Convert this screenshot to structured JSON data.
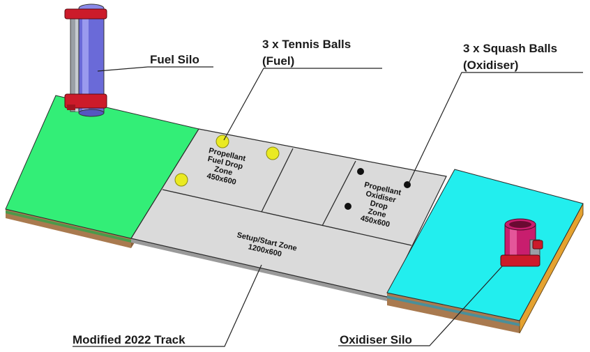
{
  "labels": {
    "fuel_silo": "Fuel Silo",
    "tennis_balls_line1": "3 x Tennis Balls",
    "tennis_balls_line2": "(Fuel)",
    "squash_balls_line1": "3 x Squash Balls",
    "squash_balls_line2": "(Oxidiser)",
    "modified_track": "Modified 2022 Track",
    "oxidiser_silo": "Oxidiser Silo"
  },
  "zones": {
    "fuel_drop": [
      "Propellant",
      "Fuel Drop",
      "Zone",
      "450x600"
    ],
    "oxidiser_drop": [
      "Propellant",
      "Oxidiser",
      "Drop",
      "Zone",
      "450x600"
    ],
    "start": [
      "Setup/Start Zone",
      "1200x600"
    ]
  },
  "colors": {
    "fuel_platform": "#33ee77",
    "oxidiser_platform": "#22eeee",
    "track": "#dadada",
    "wood_base": "#b8865a",
    "fuel_silo": "#6a6ad8",
    "oxidiser_silo": "#c81e6e",
    "silo_clamp": "#cc1b2a",
    "tennis_ball": "#eaea22",
    "squash_ball": "#111111"
  }
}
